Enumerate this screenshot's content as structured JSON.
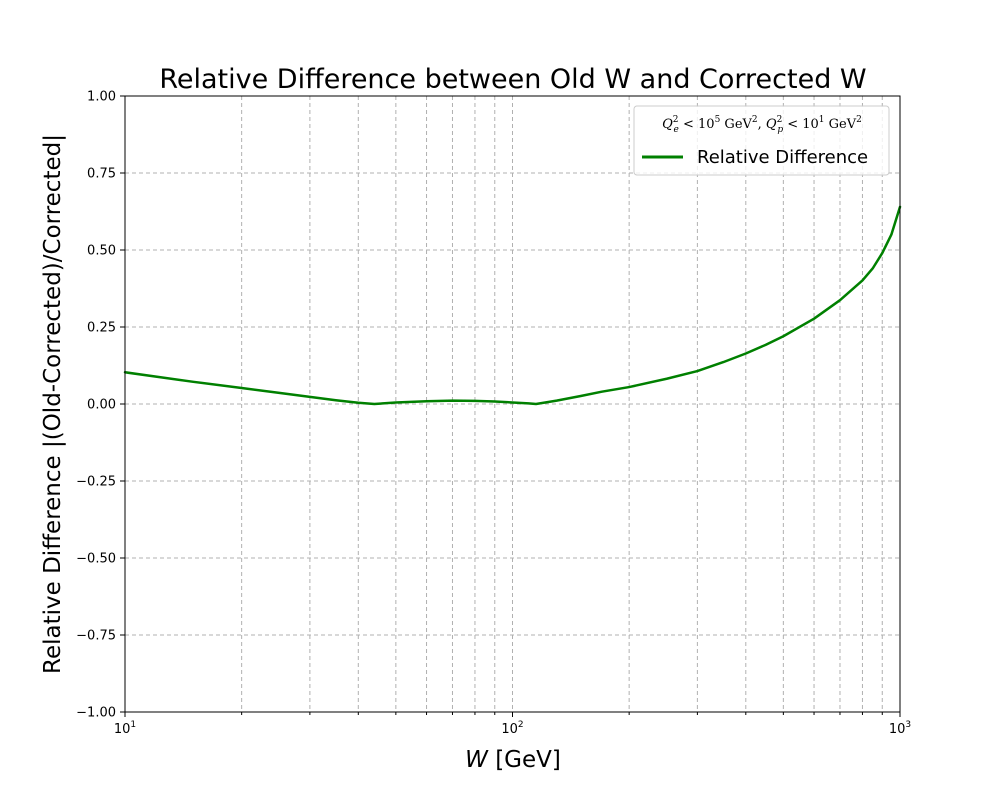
{
  "chart_data": {
    "type": "line",
    "title": "Relative Difference between Old W and Corrected W",
    "xlabel_var": "W",
    "xlabel_unit": " [GeV]",
    "ylabel": "Relative Difference |(Old-Corrected)/Corrected|",
    "xscale": "log",
    "xlim": [
      10,
      1000
    ],
    "ylim": [
      -1.0,
      1.0
    ],
    "grid": true,
    "legend_placement": "top-right",
    "legend_title": {
      "e_sym": "Q",
      "e_sub": "e",
      "e_sup": "2",
      "e_cmp": " < 10",
      "e_exp": "5",
      "e_unit": " GeV",
      "e_unit_sup": "2",
      "sep": ", ",
      "p_sym": "Q",
      "p_sub": "p",
      "p_sup": "2",
      "p_cmp": " < 10",
      "p_exp": "1",
      "p_unit": " GeV",
      "p_unit_sup": "2"
    },
    "x_ticks": [
      {
        "base": "10",
        "exp": "1",
        "value": 10
      },
      {
        "base": "10",
        "exp": "2",
        "value": 100
      },
      {
        "base": "10",
        "exp": "3",
        "value": 1000
      }
    ],
    "y_ticks": [
      {
        "label": "−1.00",
        "value": -1.0
      },
      {
        "label": "−0.75",
        "value": -0.75
      },
      {
        "label": "−0.50",
        "value": -0.5
      },
      {
        "label": "−0.25",
        "value": -0.25
      },
      {
        "label": "0.00",
        "value": 0.0
      },
      {
        "label": "0.25",
        "value": 0.25
      },
      {
        "label": "0.50",
        "value": 0.5
      },
      {
        "label": "0.75",
        "value": 0.75
      },
      {
        "label": "1.00",
        "value": 1.0
      }
    ],
    "series": [
      {
        "name": "Relative Difference",
        "color": "#008000",
        "x": [
          10,
          15,
          20,
          25,
          30,
          35,
          40,
          44,
          50,
          60,
          70,
          80,
          90,
          100,
          110,
          115,
          130,
          150,
          170,
          200,
          250,
          300,
          350,
          400,
          450,
          500,
          600,
          700,
          800,
          850,
          900,
          950,
          1000
        ],
        "y": [
          0.103,
          0.072,
          0.052,
          0.036,
          0.023,
          0.012,
          0.004,
          0.0,
          0.005,
          0.009,
          0.011,
          0.01,
          0.008,
          0.005,
          0.002,
          0.0,
          0.011,
          0.026,
          0.04,
          0.055,
          0.082,
          0.107,
          0.136,
          0.164,
          0.192,
          0.22,
          0.277,
          0.337,
          0.401,
          0.44,
          0.49,
          0.55,
          0.64
        ]
      }
    ]
  }
}
